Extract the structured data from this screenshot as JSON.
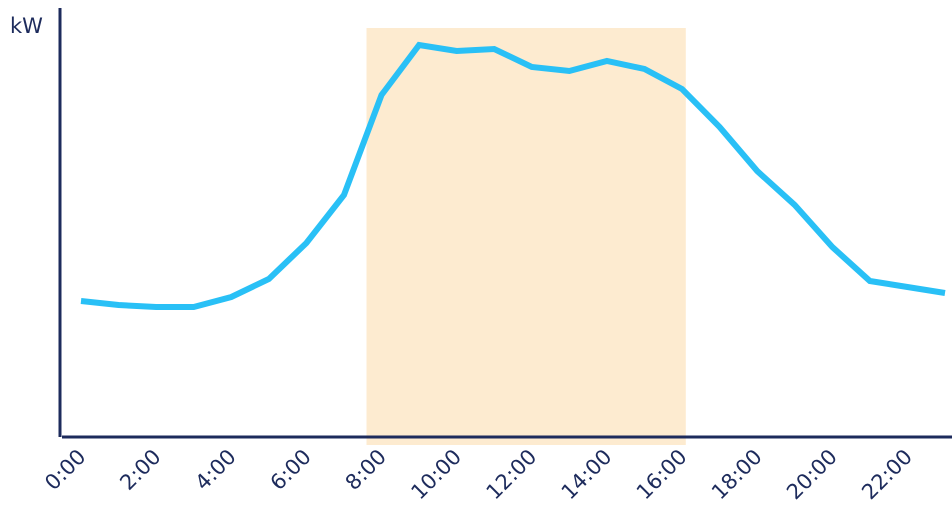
{
  "chart_data": {
    "type": "line",
    "ylabel": "kW",
    "x": [
      0,
      1,
      2,
      3,
      4,
      5,
      6,
      7,
      8,
      9,
      10,
      11,
      12,
      13,
      14,
      15,
      16,
      17,
      18,
      19,
      20,
      21,
      22,
      23
    ],
    "series": [
      {
        "name": "kW",
        "color": "#29c0f6",
        "values": [
          34,
          33,
          32.5,
          32.5,
          35,
          39.5,
          48.5,
          60.5,
          85.5,
          98,
          96.5,
          97,
          92.5,
          91.5,
          94,
          92,
          87,
          77.5,
          66.5,
          58,
          47.5,
          39,
          37.5,
          36
        ]
      }
    ],
    "xlim": [
      0,
      23
    ],
    "xticks": [
      {
        "value": 0,
        "label": "0:00"
      },
      {
        "value": 2,
        "label": "2:00"
      },
      {
        "value": 4,
        "label": "4:00"
      },
      {
        "value": 6,
        "label": "6:00"
      },
      {
        "value": 8,
        "label": "8:00"
      },
      {
        "value": 10,
        "label": "10:00"
      },
      {
        "value": 12,
        "label": "12:00"
      },
      {
        "value": 14,
        "label": "14:00"
      },
      {
        "value": 16,
        "label": "16:00"
      },
      {
        "value": 18,
        "label": "18:00"
      },
      {
        "value": 20,
        "label": "20:00"
      },
      {
        "value": 22,
        "label": "22:00"
      }
    ],
    "ylim": [
      0,
      100
    ],
    "highlight_x": [
      7.6,
      16.1
    ],
    "highlight_color": "#fdebd0"
  }
}
